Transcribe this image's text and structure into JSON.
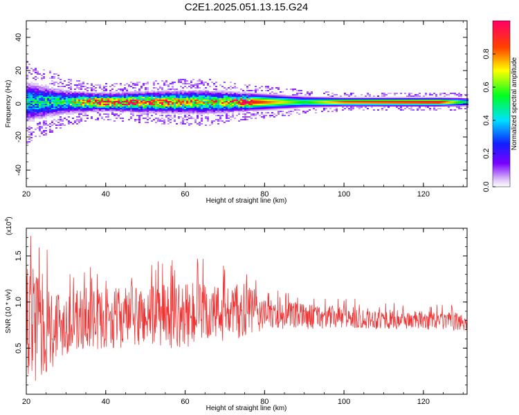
{
  "title": "C2E1.2025.051.13.15.G24",
  "chart_data": [
    {
      "type": "heatmap",
      "xlabel": "Height of straight line (km)",
      "ylabel": "Frequency (Hz)",
      "xlim": [
        20,
        131
      ],
      "ylim": [
        -50,
        50
      ],
      "xticks": [
        20,
        40,
        60,
        80,
        100,
        120
      ],
      "yticks": [
        -40,
        -20,
        0,
        20,
        40
      ],
      "colorbar": {
        "label": "Normalized spectral amplitude",
        "range": [
          0.0,
          1.0
        ],
        "ticks": [
          0.0,
          0.2,
          0.4,
          0.6,
          0.8
        ],
        "tick_labels": [
          "0.0",
          "0.2",
          "0.4",
          "0.6",
          "0.8"
        ]
      },
      "band": {
        "center_frequency_hz": 1,
        "description_points": [
          {
            "x": 20,
            "half_width_hz": 14,
            "peak": 0.45
          },
          {
            "x": 30,
            "half_width_hz": 8,
            "peak": 0.55
          },
          {
            "x": 38,
            "half_width_hz": 6,
            "peak": 0.95
          },
          {
            "x": 50,
            "half_width_hz": 7,
            "peak": 0.9
          },
          {
            "x": 65,
            "half_width_hz": 8,
            "peak": 0.7
          },
          {
            "x": 76,
            "half_width_hz": 6,
            "peak": 0.95
          },
          {
            "x": 90,
            "half_width_hz": 4,
            "peak": 0.55
          },
          {
            "x": 100,
            "half_width_hz": 3,
            "peak": 0.85
          },
          {
            "x": 124,
            "half_width_hz": 3,
            "peak": 0.95
          },
          {
            "x": 131,
            "half_width_hz": 3,
            "peak": 0.45
          }
        ]
      }
    },
    {
      "type": "line",
      "xlabel": "Height of straight line (km)",
      "ylabel": "SNR (10 * v/v)",
      "y_multiplier_label": "(x10",
      "y_multiplier_exp": "4",
      "y_multiplier_close": ")",
      "xlim": [
        20,
        131
      ],
      "ylim": [
        0,
        1.8
      ],
      "xticks": [
        20,
        40,
        60,
        80,
        100,
        120
      ],
      "yticks": [
        0.5,
        1.0,
        1.5
      ],
      "ytick_labels": [
        "0.5",
        "1.0",
        "1.5"
      ],
      "color": "#ee3333",
      "envelope": [
        {
          "x": 20,
          "mean": 0.75,
          "spread": 0.75
        },
        {
          "x": 25,
          "mean": 0.72,
          "spread": 0.5
        },
        {
          "x": 30,
          "mean": 0.78,
          "spread": 0.35
        },
        {
          "x": 40,
          "mean": 0.82,
          "spread": 0.32
        },
        {
          "x": 50,
          "mean": 0.85,
          "spread": 0.35
        },
        {
          "x": 60,
          "mean": 0.85,
          "spread": 0.35
        },
        {
          "x": 70,
          "mean": 0.88,
          "spread": 0.32
        },
        {
          "x": 76,
          "mean": 0.9,
          "spread": 0.3
        },
        {
          "x": 80,
          "mean": 0.86,
          "spread": 0.16
        },
        {
          "x": 100,
          "mean": 0.83,
          "spread": 0.12
        },
        {
          "x": 120,
          "mean": 0.8,
          "spread": 0.1
        },
        {
          "x": 131,
          "mean": 0.78,
          "spread": 0.1
        }
      ]
    }
  ]
}
